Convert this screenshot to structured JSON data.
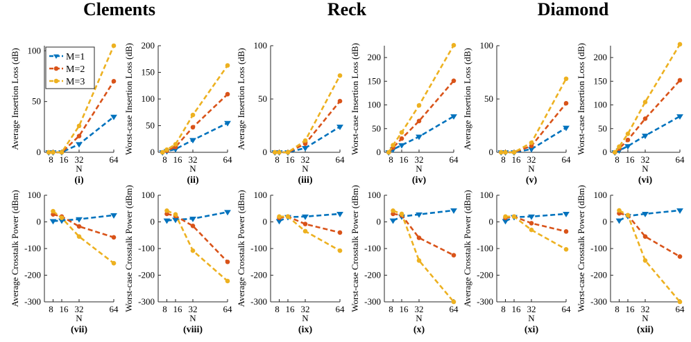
{
  "colors": {
    "M1": "#0072BD",
    "M2": "#D95319",
    "M3": "#EDB120"
  },
  "group_titles": [
    "Clements",
    "Reck",
    "Diamond"
  ],
  "legend": [
    "M=1",
    "M=2",
    "M=3"
  ],
  "chart_data": [
    {
      "type": "line",
      "label": "(i)",
      "xlabel": "N",
      "ylabel": "Average Insertion Loss (dB)",
      "x": [
        4,
        8,
        16,
        32,
        64
      ],
      "xticks": [
        "8",
        "16",
        "32",
        "64"
      ],
      "yticks": [
        0,
        50,
        100
      ],
      "ylim": [
        0,
        105
      ],
      "series": [
        {
          "name": "M=1",
          "values": [
            0,
            0,
            0,
            8,
            35
          ]
        },
        {
          "name": "M=2",
          "values": [
            0,
            0,
            0,
            16,
            70
          ]
        },
        {
          "name": "M=3",
          "values": [
            0,
            0,
            0,
            26,
            105
          ]
        }
      ]
    },
    {
      "type": "line",
      "label": "(ii)",
      "xlabel": "N",
      "ylabel": "Worst-case Insertion Loss (dB)",
      "x": [
        4,
        8,
        16,
        32,
        64
      ],
      "xticks": [
        "8",
        "16",
        "32",
        "64"
      ],
      "yticks": [
        0,
        50,
        100,
        150,
        200
      ],
      "ylim": [
        0,
        200
      ],
      "series": [
        {
          "name": "M=1",
          "values": [
            0,
            2,
            6,
            23,
            55
          ]
        },
        {
          "name": "M=2",
          "values": [
            0,
            3,
            10,
            47,
            109
          ]
        },
        {
          "name": "M=3",
          "values": [
            0,
            5,
            15,
            70,
            163
          ]
        }
      ]
    },
    {
      "type": "line",
      "label": "(iii)",
      "xlabel": "N",
      "ylabel": "Average Insertion Loss (dB)",
      "x": [
        4,
        8,
        16,
        32,
        64
      ],
      "xticks": [
        "8",
        "16",
        "32",
        "64"
      ],
      "yticks": [
        0,
        50,
        100
      ],
      "ylim": [
        0,
        100
      ],
      "series": [
        {
          "name": "M=1",
          "values": [
            0,
            0,
            0,
            4,
            24
          ]
        },
        {
          "name": "M=2",
          "values": [
            0,
            0,
            0,
            8,
            48
          ]
        },
        {
          "name": "M=3",
          "values": [
            0,
            0,
            0,
            11,
            72
          ]
        }
      ]
    },
    {
      "type": "line",
      "label": "(iv)",
      "xlabel": "N",
      "ylabel": "Worst-case Insertion Loss (dB)",
      "x": [
        4,
        8,
        16,
        32,
        64
      ],
      "xticks": [
        "8",
        "16",
        "32",
        "64"
      ],
      "yticks": [
        0,
        50,
        100,
        150,
        200
      ],
      "ylim": [
        0,
        225
      ],
      "series": [
        {
          "name": "M=1",
          "values": [
            0,
            6,
            15,
            33,
            76
          ]
        },
        {
          "name": "M=2",
          "values": [
            0,
            10,
            29,
            66,
            151
          ]
        },
        {
          "name": "M=3",
          "values": [
            0,
            15,
            42,
            99,
            226
          ]
        }
      ]
    },
    {
      "type": "line",
      "label": "(v)",
      "xlabel": "N",
      "ylabel": "Average Insertion Loss (dB)",
      "x": [
        4,
        8,
        16,
        32,
        64
      ],
      "xticks": [
        "8",
        "16",
        "32",
        "64"
      ],
      "yticks": [
        0,
        50,
        100
      ],
      "ylim": [
        0,
        100
      ],
      "series": [
        {
          "name": "M=1",
          "values": [
            0,
            0,
            0,
            3,
            23
          ]
        },
        {
          "name": "M=2",
          "values": [
            0,
            0,
            0,
            6,
            46
          ]
        },
        {
          "name": "M=3",
          "values": [
            0,
            0,
            0,
            9,
            69
          ]
        }
      ]
    },
    {
      "type": "line",
      "label": "(vi)",
      "xlabel": "N",
      "ylabel": "Worst-case Insertion Loss (dB)",
      "x": [
        4,
        8,
        16,
        32,
        64
      ],
      "xticks": [
        "8",
        "16",
        "32",
        "64"
      ],
      "yticks": [
        0,
        50,
        100,
        150,
        200
      ],
      "ylim": [
        0,
        225
      ],
      "series": [
        {
          "name": "M=1",
          "values": [
            0,
            4,
            13,
            35,
            76
          ]
        },
        {
          "name": "M=2",
          "values": [
            0,
            8,
            26,
            71,
            152
          ]
        },
        {
          "name": "M=3",
          "values": [
            0,
            12,
            39,
            106,
            228
          ]
        }
      ]
    },
    {
      "type": "line",
      "label": "(vii)",
      "xlabel": "N",
      "ylabel": "Average Crosstalk Power (dBm)",
      "x": [
        8,
        16,
        32,
        64
      ],
      "xticks": [
        "8",
        "16",
        "32",
        "64"
      ],
      "yticks": [
        100,
        0,
        -100,
        -200,
        -300
      ],
      "ylim": [
        -300,
        100
      ],
      "series": [
        {
          "name": "M=1",
          "values": [
            3,
            5,
            10,
            25
          ]
        },
        {
          "name": "M=2",
          "values": [
            28,
            20,
            -17,
            -58
          ]
        },
        {
          "name": "M=3",
          "values": [
            40,
            15,
            -55,
            -155
          ]
        }
      ]
    },
    {
      "type": "line",
      "label": "(viii)",
      "xlabel": "N",
      "ylabel": "Worst-case Crosstalk Power (dBm)",
      "x": [
        8,
        16,
        32,
        64
      ],
      "xticks": [
        "8",
        "16",
        "32",
        "64"
      ],
      "yticks": [
        100,
        0,
        -100,
        -200,
        -300
      ],
      "ylim": [
        -300,
        100
      ],
      "series": [
        {
          "name": "M=1",
          "values": [
            5,
            8,
            12,
            37
          ]
        },
        {
          "name": "M=2",
          "values": [
            30,
            22,
            -15,
            -150
          ]
        },
        {
          "name": "M=3",
          "values": [
            42,
            28,
            -108,
            -222
          ]
        }
      ]
    },
    {
      "type": "line",
      "label": "(ix)",
      "xlabel": "N",
      "ylabel": "Average Crosstalk Power (dBm)",
      "x": [
        8,
        16,
        32,
        64
      ],
      "xticks": [
        "8",
        "16",
        "32",
        "64"
      ],
      "yticks": [
        100,
        0,
        -100,
        -200,
        -300
      ],
      "ylim": [
        -300,
        100
      ],
      "series": [
        {
          "name": "M=1",
          "values": [
            3,
            18,
            20,
            30
          ]
        },
        {
          "name": "M=2",
          "values": [
            15,
            20,
            -8,
            -40
          ]
        },
        {
          "name": "M=3",
          "values": [
            20,
            20,
            -35,
            -108
          ]
        }
      ]
    },
    {
      "type": "line",
      "label": "(x)",
      "xlabel": "N",
      "ylabel": "Worst-case Crosstalk Power (dBm)",
      "x": [
        8,
        16,
        32,
        64
      ],
      "xticks": [
        "8",
        "16",
        "32",
        "64"
      ],
      "yticks": [
        100,
        0,
        -100,
        -200,
        -300
      ],
      "ylim": [
        -300,
        100
      ],
      "series": [
        {
          "name": "M=1",
          "values": [
            5,
            20,
            28,
            43
          ]
        },
        {
          "name": "M=2",
          "values": [
            30,
            25,
            -60,
            -125
          ]
        },
        {
          "name": "M=3",
          "values": [
            42,
            30,
            -145,
            -300
          ]
        }
      ]
    },
    {
      "type": "line",
      "label": "(xi)",
      "xlabel": "N",
      "ylabel": "Average Crosstalk Power (dBm)",
      "x": [
        8,
        16,
        32,
        64
      ],
      "xticks": [
        "8",
        "16",
        "32",
        "64"
      ],
      "yticks": [
        100,
        0,
        -100,
        -200,
        -300
      ],
      "ylim": [
        -300,
        100
      ],
      "series": [
        {
          "name": "M=1",
          "values": [
            3,
            18,
            20,
            30
          ]
        },
        {
          "name": "M=2",
          "values": [
            15,
            20,
            -5,
            -36
          ]
        },
        {
          "name": "M=3",
          "values": [
            20,
            20,
            -30,
            -103
          ]
        }
      ]
    },
    {
      "type": "line",
      "label": "(xii)",
      "xlabel": "N",
      "ylabel": "Worst-case Crosstalk Power (dBm)",
      "x": [
        8,
        16,
        32,
        64
      ],
      "xticks": [
        "8",
        "16",
        "32",
        "64"
      ],
      "yticks": [
        100,
        0,
        -100,
        -200,
        -300
      ],
      "ylim": [
        -300,
        100
      ],
      "series": [
        {
          "name": "M=1",
          "values": [
            5,
            22,
            30,
            43
          ]
        },
        {
          "name": "M=2",
          "values": [
            32,
            25,
            -55,
            -130
          ]
        },
        {
          "name": "M=3",
          "values": [
            43,
            25,
            -145,
            -300
          ]
        }
      ]
    }
  ]
}
